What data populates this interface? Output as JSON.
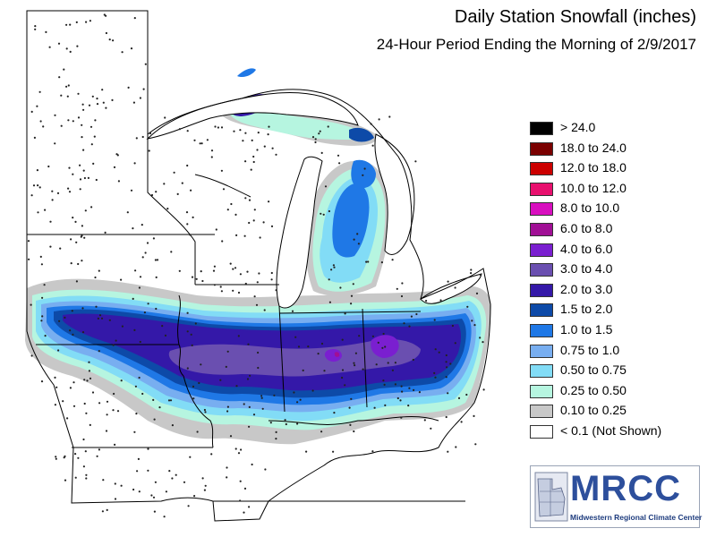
{
  "header": {
    "title": "Daily Station Snowfall (inches)",
    "subtitle": "24-Hour Period Ending the Morning of 2/9/2017"
  },
  "legend": {
    "items": [
      {
        "label": "> 24.0",
        "color": "#000000"
      },
      {
        "label": "18.0 to 24.0",
        "color": "#7a0000"
      },
      {
        "label": "12.0 to 18.0",
        "color": "#cc0000"
      },
      {
        "label": "10.0 to 12.0",
        "color": "#e8106e"
      },
      {
        "label": "8.0 to 10.0",
        "color": "#d80fbf"
      },
      {
        "label": "6.0 to 8.0",
        "color": "#a00f95"
      },
      {
        "label": "4.0 to 6.0",
        "color": "#7a1fd0"
      },
      {
        "label": "3.0 to 4.0",
        "color": "#6a4fb0"
      },
      {
        "label": "2.0 to 3.0",
        "color": "#3418a8"
      },
      {
        "label": "1.5 to 2.0",
        "color": "#0d4aa8"
      },
      {
        "label": "1.0 to 1.5",
        "color": "#1f78e6"
      },
      {
        "label": "0.75 to 1.0",
        "color": "#78aef0"
      },
      {
        "label": "0.50 to 0.75",
        "color": "#82dcf6"
      },
      {
        "label": "0.25 to 0.50",
        "color": "#b6f5e0"
      },
      {
        "label": "0.10 to 0.25",
        "color": "#c8c8c8"
      },
      {
        "label": "< 0.1 (Not Shown)",
        "color": "#ffffff"
      }
    ]
  },
  "logo": {
    "text": "MRCC",
    "subtext": "Midwestern Regional Climate Center"
  },
  "colors": {
    "state_border": "#000000",
    "station_dot": "#222222",
    "lake_fill": "#ffffff"
  }
}
